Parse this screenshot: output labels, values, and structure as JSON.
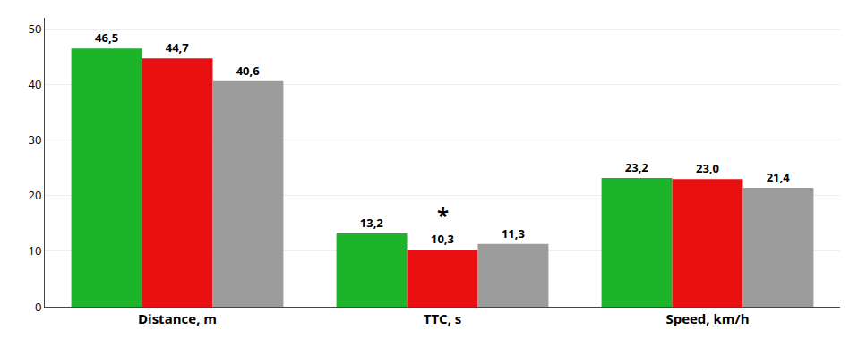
{
  "chart_data": {
    "type": "bar",
    "categories": [
      "Distance, m",
      "TTC, s",
      "Speed, km/h"
    ],
    "series": [
      {
        "color": "#1db32a",
        "values": [
          46.5,
          13.2,
          23.2
        ],
        "value_labels": [
          "46,5",
          "13,2",
          "23,2"
        ]
      },
      {
        "color": "#e81010",
        "values": [
          44.7,
          10.3,
          23.0
        ],
        "value_labels": [
          "44,7",
          "10,3",
          "23,0"
        ],
        "annotations": [
          {
            "category": "TTC, s",
            "text": "*"
          }
        ]
      },
      {
        "color": "#9c9c9c",
        "values": [
          40.6,
          11.3,
          21.4
        ],
        "value_labels": [
          "40,6",
          "11,3",
          "21,4"
        ]
      }
    ],
    "ylim": [
      0,
      52
    ],
    "yticks": [
      0,
      10,
      20,
      30,
      40,
      50
    ],
    "grid": true,
    "data_labels": true
  }
}
